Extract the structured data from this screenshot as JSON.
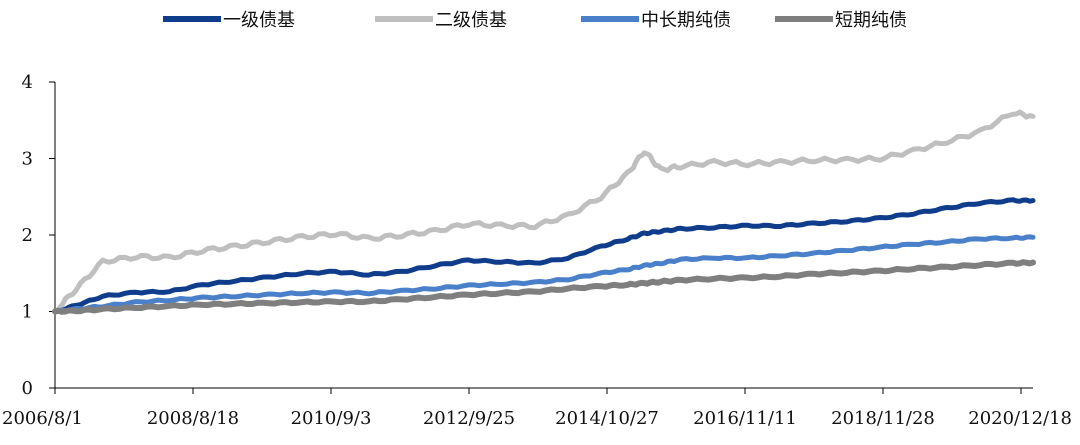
{
  "chart_data": {
    "type": "line",
    "title": "",
    "xlabel": "",
    "ylabel": "",
    "ylim": [
      0,
      4
    ],
    "yticks": [
      0,
      1,
      2,
      3,
      4
    ],
    "grid": false,
    "legend_position": "top",
    "x_tick_labels": [
      "2006/8/1",
      "2008/8/18",
      "2010/9/3",
      "2012/9/25",
      "2014/10/27",
      "2016/11/11",
      "2018/11/28",
      "2020/12/18"
    ],
    "x": [
      2006.58,
      2006.9,
      2007.3,
      2007.8,
      2008.3,
      2008.8,
      2009.3,
      2009.8,
      2010.3,
      2010.8,
      2011.3,
      2011.8,
      2012.3,
      2012.8,
      2013.3,
      2013.8,
      2014.3,
      2014.8,
      2015.2,
      2015.45,
      2015.7,
      2016.0,
      2016.5,
      2017.0,
      2017.5,
      2018.0,
      2018.5,
      2019.0,
      2019.5,
      2020.0,
      2020.5,
      2021.0,
      2021.3
    ],
    "series": [
      {
        "name": "一级债基",
        "color": "#0f3d8c",
        "values": [
          1.0,
          1.08,
          1.2,
          1.25,
          1.26,
          1.35,
          1.4,
          1.45,
          1.5,
          1.52,
          1.48,
          1.52,
          1.6,
          1.67,
          1.65,
          1.63,
          1.7,
          1.85,
          1.95,
          2.02,
          2.05,
          2.08,
          2.1,
          2.12,
          2.12,
          2.15,
          2.18,
          2.22,
          2.28,
          2.35,
          2.42,
          2.45,
          2.45
        ]
      },
      {
        "name": "二级债基",
        "color": "#bfbfbf",
        "values": [
          1.0,
          1.3,
          1.65,
          1.72,
          1.7,
          1.8,
          1.85,
          1.92,
          1.97,
          2.02,
          1.95,
          2.0,
          2.05,
          2.15,
          2.12,
          2.12,
          2.25,
          2.5,
          2.8,
          3.1,
          2.85,
          2.9,
          2.95,
          2.93,
          2.95,
          2.98,
          2.98,
          3.0,
          3.1,
          3.22,
          3.35,
          3.6,
          3.55
        ]
      },
      {
        "name": "中长期纯债",
        "color": "#4a7fc9",
        "values": [
          1.0,
          1.03,
          1.07,
          1.12,
          1.15,
          1.18,
          1.2,
          1.22,
          1.24,
          1.25,
          1.24,
          1.27,
          1.3,
          1.34,
          1.36,
          1.38,
          1.42,
          1.5,
          1.55,
          1.6,
          1.63,
          1.68,
          1.7,
          1.7,
          1.73,
          1.76,
          1.8,
          1.84,
          1.88,
          1.91,
          1.95,
          1.96,
          1.97
        ]
      },
      {
        "name": "短期纯债",
        "color": "#7f7f7f",
        "values": [
          1.0,
          1.01,
          1.03,
          1.05,
          1.07,
          1.09,
          1.1,
          1.11,
          1.12,
          1.13,
          1.13,
          1.16,
          1.19,
          1.22,
          1.24,
          1.26,
          1.3,
          1.33,
          1.35,
          1.37,
          1.39,
          1.41,
          1.43,
          1.44,
          1.46,
          1.49,
          1.51,
          1.53,
          1.56,
          1.58,
          1.61,
          1.63,
          1.64
        ]
      }
    ]
  }
}
